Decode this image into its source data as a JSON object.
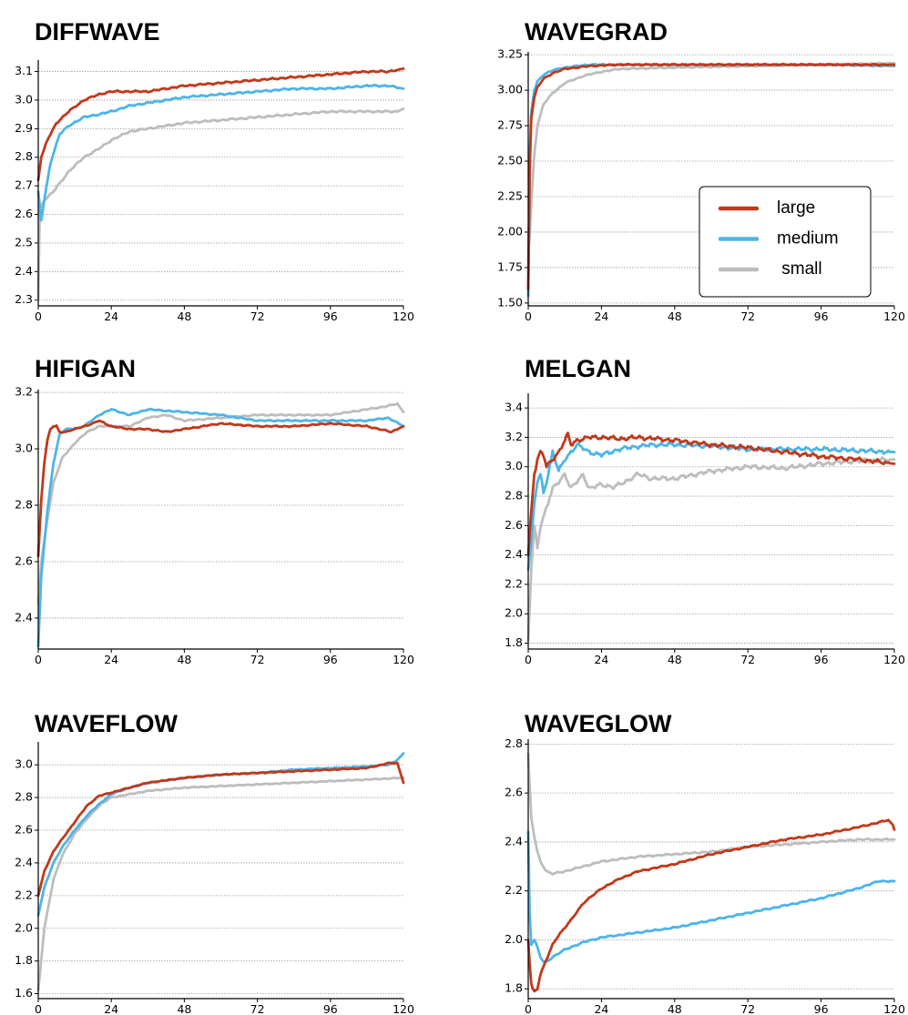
{
  "colors": {
    "large": "#c0391b",
    "medium": "#4cb5e8",
    "small": "#bdbdbd"
  },
  "legend": {
    "placement": "inside plot WAVEGRAD, lower-right",
    "entries": [
      {
        "key": "large",
        "label": "large"
      },
      {
        "key": "medium",
        "label": "medium"
      },
      {
        "key": "small",
        "label": " small"
      }
    ]
  },
  "chart_data": [
    {
      "type": "line",
      "title": "DIFFWAVE",
      "xlabel": "",
      "ylabel": "",
      "xlim": [
        0,
        120
      ],
      "ylim": [
        2.28,
        3.14
      ],
      "xticks": [
        0,
        24,
        48,
        72,
        96,
        120
      ],
      "yticks": [
        2.3,
        2.4,
        2.5,
        2.6,
        2.7,
        2.8,
        2.9,
        3.0,
        3.1
      ],
      "ytick_labels": [
        "2.3",
        "2.4",
        "2.5",
        "2.6",
        "2.7",
        "2.8",
        "2.9",
        "3.0",
        "3.1"
      ],
      "grid": "horizontal dotted",
      "noise": 0.004,
      "series": [
        {
          "key": "large",
          "x": [
            0,
            1,
            3,
            6,
            10,
            15,
            20,
            24,
            30,
            36,
            48,
            60,
            72,
            84,
            96,
            108,
            115,
            120
          ],
          "y": [
            2.72,
            2.8,
            2.86,
            2.92,
            2.96,
            3.0,
            3.02,
            3.03,
            3.03,
            3.03,
            3.05,
            3.06,
            3.07,
            3.08,
            3.09,
            3.1,
            3.1,
            3.11
          ]
        },
        {
          "key": "medium",
          "x": [
            0,
            1,
            2,
            4,
            7,
            10,
            15,
            20,
            24,
            30,
            36,
            48,
            60,
            72,
            84,
            96,
            108,
            115,
            120
          ],
          "y": [
            2.68,
            2.58,
            2.65,
            2.78,
            2.88,
            2.91,
            2.94,
            2.95,
            2.96,
            2.98,
            2.99,
            3.01,
            3.02,
            3.03,
            3.04,
            3.04,
            3.05,
            3.05,
            3.04
          ]
        },
        {
          "key": "small",
          "x": [
            0,
            0.5,
            2,
            5,
            10,
            15,
            20,
            24,
            30,
            36,
            48,
            60,
            72,
            84,
            96,
            108,
            118,
            120
          ],
          "y": [
            2.3,
            2.62,
            2.65,
            2.68,
            2.75,
            2.8,
            2.83,
            2.86,
            2.89,
            2.9,
            2.92,
            2.93,
            2.94,
            2.95,
            2.96,
            2.96,
            2.96,
            2.97
          ]
        }
      ]
    },
    {
      "type": "line",
      "title": "WAVEGRAD",
      "xlabel": "",
      "ylabel": "",
      "xlim": [
        0,
        120
      ],
      "ylim": [
        1.48,
        3.27
      ],
      "xticks": [
        0,
        24,
        48,
        72,
        96,
        120
      ],
      "yticks": [
        1.5,
        1.75,
        2.0,
        2.25,
        2.5,
        2.75,
        3.0,
        3.25
      ],
      "ytick_labels": [
        "1.50",
        "1.75",
        "2.00",
        "2.25",
        "2.50",
        "2.75",
        "3.00",
        "3.25"
      ],
      "grid": "horizontal dotted",
      "noise": 0.006,
      "legend": true,
      "series": [
        {
          "key": "large",
          "x": [
            0,
            0.5,
            1,
            2,
            3,
            5,
            8,
            12,
            20,
            30,
            48,
            72,
            96,
            120
          ],
          "y": [
            1.6,
            2.45,
            2.8,
            2.95,
            3.02,
            3.08,
            3.12,
            3.15,
            3.17,
            3.18,
            3.18,
            3.18,
            3.18,
            3.18
          ]
        },
        {
          "key": "medium",
          "x": [
            0,
            0.5,
            1,
            2,
            3,
            5,
            8,
            12,
            20,
            30,
            48,
            72,
            96,
            120
          ],
          "y": [
            1.55,
            2.55,
            2.85,
            3.0,
            3.06,
            3.11,
            3.14,
            3.16,
            3.18,
            3.18,
            3.18,
            3.18,
            3.18,
            3.17
          ]
        },
        {
          "key": "small",
          "x": [
            0,
            1,
            2,
            3,
            5,
            8,
            12,
            18,
            24,
            30,
            48,
            72,
            96,
            120
          ],
          "y": [
            1.8,
            2.2,
            2.55,
            2.75,
            2.9,
            2.98,
            3.05,
            3.1,
            3.13,
            3.15,
            3.16,
            3.17,
            3.18,
            3.19
          ]
        }
      ]
    },
    {
      "type": "line",
      "title": "HIFIGAN",
      "xlabel": "",
      "ylabel": "",
      "xlim": [
        0,
        120
      ],
      "ylim": [
        2.29,
        3.21
      ],
      "xticks": [
        0,
        24,
        48,
        72,
        96,
        120
      ],
      "yticks": [
        2.4,
        2.6,
        2.8,
        3.0,
        3.2
      ],
      "ytick_labels": [
        "2.4",
        "2.6",
        "2.8",
        "3.0",
        "3.2"
      ],
      "grid": "horizontal dotted",
      "noise": 0.003,
      "series": [
        {
          "key": "large",
          "x": [
            0,
            1,
            2,
            3,
            4,
            5,
            6,
            7,
            9,
            12,
            15,
            18,
            20,
            24,
            30,
            36,
            42,
            48,
            60,
            72,
            84,
            96,
            108,
            116,
            120
          ],
          "y": [
            2.62,
            2.82,
            2.95,
            3.03,
            3.07,
            3.08,
            3.08,
            3.06,
            3.06,
            3.07,
            3.08,
            3.09,
            3.1,
            3.08,
            3.07,
            3.07,
            3.06,
            3.07,
            3.09,
            3.08,
            3.08,
            3.09,
            3.08,
            3.06,
            3.08
          ]
        },
        {
          "key": "medium",
          "x": [
            0,
            1,
            3,
            5,
            7,
            9,
            12,
            15,
            20,
            24,
            30,
            36,
            48,
            60,
            72,
            84,
            96,
            108,
            115,
            120
          ],
          "y": [
            2.3,
            2.55,
            2.78,
            2.95,
            3.05,
            3.07,
            3.07,
            3.08,
            3.12,
            3.14,
            3.12,
            3.14,
            3.13,
            3.12,
            3.1,
            3.1,
            3.1,
            3.1,
            3.11,
            3.08
          ]
        },
        {
          "key": "small",
          "x": [
            0,
            1,
            3,
            5,
            8,
            12,
            16,
            20,
            24,
            30,
            36,
            42,
            48,
            60,
            72,
            84,
            96,
            108,
            114,
            118,
            120
          ],
          "y": [
            2.45,
            2.6,
            2.75,
            2.88,
            2.97,
            3.02,
            3.06,
            3.08,
            3.08,
            3.08,
            3.11,
            3.12,
            3.1,
            3.11,
            3.12,
            3.12,
            3.12,
            3.14,
            3.15,
            3.16,
            3.13
          ]
        }
      ]
    },
    {
      "type": "line",
      "title": "MELGAN",
      "xlabel": "",
      "ylabel": "",
      "xlim": [
        0,
        120
      ],
      "ylim": [
        1.76,
        3.5
      ],
      "xticks": [
        0,
        24,
        48,
        72,
        96,
        120
      ],
      "yticks": [
        1.8,
        2.0,
        2.2,
        2.4,
        2.6,
        2.8,
        3.0,
        3.2,
        3.4
      ],
      "ytick_labels": [
        "1.8",
        "2.0",
        "2.2",
        "2.4",
        "2.6",
        "2.8",
        "3.0",
        "3.2",
        "3.4"
      ],
      "grid": "horizontal dotted",
      "noise": 0.018,
      "series": [
        {
          "key": "large",
          "x": [
            0,
            1,
            2,
            3,
            4,
            5,
            6,
            8,
            10,
            12,
            13,
            14,
            16,
            20,
            24,
            30,
            36,
            42,
            48,
            60,
            72,
            84,
            96,
            108,
            120
          ],
          "y": [
            2.4,
            2.7,
            2.95,
            3.05,
            3.1,
            3.08,
            3.0,
            3.05,
            3.1,
            3.18,
            3.22,
            3.15,
            3.18,
            3.2,
            3.2,
            3.19,
            3.2,
            3.19,
            3.18,
            3.15,
            3.13,
            3.1,
            3.07,
            3.05,
            3.02
          ]
        },
        {
          "key": "medium",
          "x": [
            0,
            1,
            2,
            3,
            4,
            5,
            6,
            7,
            8,
            10,
            12,
            14,
            16,
            20,
            24,
            30,
            36,
            42,
            48,
            60,
            72,
            84,
            96,
            108,
            120
          ],
          "y": [
            2.3,
            2.5,
            2.75,
            2.9,
            2.95,
            2.82,
            2.9,
            3.0,
            3.1,
            2.97,
            3.05,
            3.1,
            3.15,
            3.1,
            3.08,
            3.12,
            3.14,
            3.15,
            3.15,
            3.14,
            3.12,
            3.12,
            3.12,
            3.11,
            3.1
          ]
        },
        {
          "key": "small",
          "x": [
            0,
            1,
            2,
            3,
            4,
            6,
            8,
            10,
            12,
            14,
            16,
            18,
            20,
            24,
            28,
            32,
            36,
            40,
            48,
            60,
            72,
            84,
            96,
            108,
            120
          ],
          "y": [
            1.82,
            2.3,
            2.6,
            2.45,
            2.6,
            2.72,
            2.85,
            2.9,
            2.95,
            2.85,
            2.9,
            2.95,
            2.85,
            2.88,
            2.86,
            2.9,
            2.95,
            2.92,
            2.92,
            2.97,
            3.0,
            2.99,
            3.02,
            3.04,
            3.05
          ]
        }
      ]
    },
    {
      "type": "line",
      "title": "WAVEFLOW",
      "xlabel": "",
      "ylabel": "",
      "xlim": [
        0,
        120
      ],
      "ylim": [
        1.57,
        3.14
      ],
      "xticks": [
        0,
        24,
        48,
        72,
        96,
        120
      ],
      "yticks": [
        1.6,
        1.8,
        2.0,
        2.2,
        2.4,
        2.6,
        2.8,
        3.0
      ],
      "ytick_labels": [
        "1.6",
        "1.8",
        "2.0",
        "2.2",
        "2.4",
        "2.6",
        "2.8",
        "3.0"
      ],
      "grid": "horizontal dotted",
      "noise": 0.004,
      "series": [
        {
          "key": "large",
          "x": [
            0,
            2,
            5,
            8,
            12,
            16,
            20,
            24,
            30,
            36,
            48,
            60,
            72,
            84,
            96,
            108,
            115,
            118,
            119,
            120
          ],
          "y": [
            2.2,
            2.35,
            2.47,
            2.55,
            2.65,
            2.75,
            2.81,
            2.83,
            2.86,
            2.89,
            2.92,
            2.94,
            2.95,
            2.96,
            2.97,
            2.98,
            3.01,
            3.01,
            2.95,
            2.89
          ]
        },
        {
          "key": "medium",
          "x": [
            0,
            2,
            5,
            8,
            12,
            16,
            20,
            24,
            30,
            36,
            48,
            60,
            72,
            84,
            96,
            108,
            115,
            118,
            120
          ],
          "y": [
            2.08,
            2.25,
            2.4,
            2.5,
            2.6,
            2.69,
            2.76,
            2.82,
            2.86,
            2.89,
            2.92,
            2.94,
            2.95,
            2.97,
            2.98,
            2.99,
            3.0,
            3.03,
            3.07
          ]
        },
        {
          "key": "small",
          "x": [
            0,
            2,
            5,
            8,
            12,
            16,
            20,
            24,
            30,
            36,
            48,
            60,
            72,
            84,
            96,
            108,
            120
          ],
          "y": [
            1.62,
            2.0,
            2.3,
            2.45,
            2.58,
            2.67,
            2.75,
            2.8,
            2.82,
            2.84,
            2.86,
            2.87,
            2.88,
            2.89,
            2.9,
            2.91,
            2.92
          ]
        }
      ]
    },
    {
      "type": "line",
      "title": "WAVEGLOW",
      "xlabel": "",
      "ylabel": "",
      "xlim": [
        0,
        120
      ],
      "ylim": [
        1.76,
        2.82
      ],
      "xticks": [
        0,
        24,
        48,
        72,
        96,
        120
      ],
      "yticks": [
        1.8,
        2.0,
        2.2,
        2.4,
        2.6,
        2.8
      ],
      "ytick_labels": [
        "1.8",
        "2.0",
        "2.2",
        "2.4",
        "2.6",
        "2.8"
      ],
      "grid": "horizontal dotted",
      "noise": 0.004,
      "series": [
        {
          "key": "large",
          "x": [
            0,
            0.5,
            1,
            1.5,
            2,
            3,
            4,
            6,
            8,
            10,
            14,
            18,
            24,
            30,
            36,
            48,
            60,
            72,
            84,
            96,
            108,
            115,
            118,
            119.5,
            120
          ],
          "y": [
            2.0,
            1.9,
            1.82,
            1.8,
            1.79,
            1.8,
            1.86,
            1.92,
            1.98,
            2.02,
            2.08,
            2.15,
            2.21,
            2.25,
            2.28,
            2.31,
            2.35,
            2.38,
            2.41,
            2.43,
            2.46,
            2.48,
            2.49,
            2.47,
            2.45
          ]
        },
        {
          "key": "medium",
          "x": [
            0,
            0.5,
            1,
            2,
            3,
            4,
            5,
            6,
            8,
            12,
            18,
            24,
            30,
            36,
            48,
            60,
            72,
            84,
            96,
            108,
            115,
            120
          ],
          "y": [
            2.44,
            2.1,
            1.98,
            2.0,
            1.97,
            1.93,
            1.91,
            1.91,
            1.93,
            1.96,
            1.99,
            2.01,
            2.02,
            2.03,
            2.05,
            2.08,
            2.11,
            2.14,
            2.17,
            2.21,
            2.24,
            2.24
          ]
        },
        {
          "key": "small",
          "x": [
            0,
            0.5,
            1,
            2,
            3,
            4,
            6,
            8,
            12,
            18,
            24,
            30,
            36,
            48,
            60,
            72,
            84,
            96,
            108,
            120
          ],
          "y": [
            2.76,
            2.62,
            2.5,
            2.42,
            2.36,
            2.32,
            2.28,
            2.27,
            2.28,
            2.3,
            2.32,
            2.33,
            2.34,
            2.35,
            2.36,
            2.38,
            2.39,
            2.4,
            2.41,
            2.41
          ]
        }
      ]
    }
  ]
}
